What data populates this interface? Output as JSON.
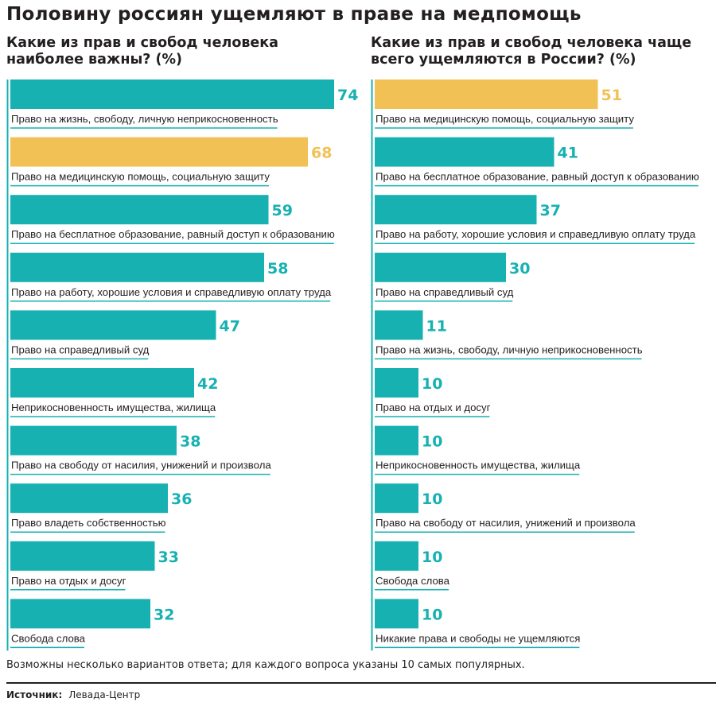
{
  "title": "Половину россиян ущемляют в праве на медпомощь",
  "colors": {
    "teal": "#17b1b2",
    "highlight": "#f2c155",
    "text": "#231f20",
    "line": "#17b1b2"
  },
  "chart_data": [
    {
      "type": "bar",
      "orientation": "horizontal",
      "title": "Какие из прав и свобод человека\nнаиболее важны? (%)",
      "categories": [
        "Право на жизнь, свободу, личную неприкосновенность",
        "Право на медицинскую помощь, социальную защиту",
        "Право на бесплатное образование, равный доступ к образованию",
        "Право на работу, хорошие условия и справедливую оплату труда",
        "Право на справедливый суд",
        "Неприкосновенность имущества, жилища",
        "Право на свободу от насилия, унижений и произвола",
        "Право владеть собственностью",
        "Право на отдых и досуг",
        "Свобода слова"
      ],
      "values": [
        74,
        68,
        59,
        58,
        47,
        42,
        38,
        36,
        33,
        32
      ],
      "value_labels": [
        "74",
        "68",
        "59",
        "58",
        "47",
        "42",
        "38",
        "36",
        "33",
        "32"
      ],
      "highlight": [
        false,
        true,
        false,
        false,
        false,
        false,
        false,
        false,
        false,
        false
      ]
    },
    {
      "type": "bar",
      "orientation": "horizontal",
      "title": "Какие из прав и свобод человека чаще\nвсего ущемляются в России? (%)",
      "categories": [
        "Право на медицинскую помощь, социальную защиту",
        "Право на бесплатное образование, равный доступ к образованию",
        "Право на работу, хорошие условия и справедливую оплату труда",
        "Право на справедливый суд",
        "Право на жизнь, свободу, личную неприкосновенность",
        "Право на отдых и досуг",
        "Неприкосновенность имущества, жилища",
        "Право на свободу от насилия, унижений и произвола",
        "Свобода слова",
        "Никакие права и свободы не ущемляются"
      ],
      "values": [
        51,
        41,
        37,
        30,
        11,
        10,
        10,
        10,
        10,
        10
      ],
      "value_labels": [
        "51",
        "41",
        "37",
        "30",
        "11",
        "10",
        "10",
        "10",
        "10",
        "10"
      ],
      "highlight": [
        true,
        false,
        false,
        false,
        false,
        false,
        false,
        false,
        false,
        false
      ]
    }
  ],
  "note": "Возможны несколько вариантов ответа; для каждого вопроса указаны 10 самых популярных.",
  "source": {
    "label": "Источник:",
    "value": "Левада-Центр"
  }
}
